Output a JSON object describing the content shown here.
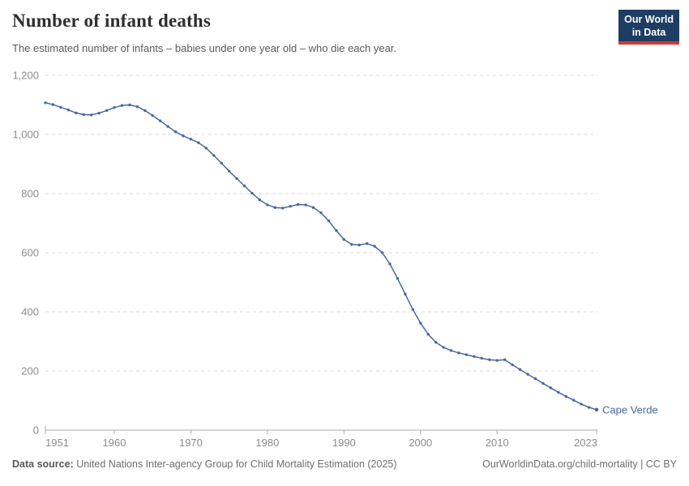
{
  "header": {
    "title": "Number of infant deaths",
    "subtitle": "The estimated number of infants – babies under one year old – who die each year.",
    "logo": {
      "line1": "Our World",
      "line2": "in Data",
      "bg_color": "#1d3d63",
      "accent_color": "#cf3a34"
    }
  },
  "chart_data": {
    "type": "line",
    "title": "Number of infant deaths",
    "entity_label": "Cape Verde",
    "line_color": "#4a68a0",
    "grid": "horizontal-dashed",
    "legend_position": "end-of-line",
    "xlabel": "",
    "ylabel": "",
    "ylim": [
      0,
      1200
    ],
    "yticks": [
      0,
      200,
      400,
      600,
      800,
      1000,
      1200
    ],
    "ytick_labels": [
      "0",
      "200",
      "400",
      "600",
      "800",
      "1,000",
      "1,200"
    ],
    "xticks": [
      1951,
      1960,
      1970,
      1980,
      1990,
      2000,
      2010,
      2023
    ],
    "x": [
      1951,
      1952,
      1953,
      1954,
      1955,
      1956,
      1957,
      1958,
      1959,
      1960,
      1961,
      1962,
      1963,
      1964,
      1965,
      1966,
      1967,
      1968,
      1969,
      1970,
      1971,
      1972,
      1973,
      1974,
      1975,
      1976,
      1977,
      1978,
      1979,
      1980,
      1981,
      1982,
      1983,
      1984,
      1985,
      1986,
      1987,
      1988,
      1989,
      1990,
      1991,
      1992,
      1993,
      1994,
      1995,
      1996,
      1997,
      1998,
      1999,
      2000,
      2001,
      2002,
      2003,
      2004,
      2005,
      2006,
      2007,
      2008,
      2009,
      2010,
      2011,
      2012,
      2013,
      2014,
      2015,
      2016,
      2017,
      2018,
      2019,
      2020,
      2021,
      2022,
      2023
    ],
    "values": [
      1107,
      1101,
      1092,
      1083,
      1073,
      1067,
      1066,
      1072,
      1081,
      1091,
      1098,
      1100,
      1094,
      1081,
      1064,
      1046,
      1027,
      1009,
      995,
      984,
      972,
      954,
      929,
      903,
      876,
      851,
      826,
      801,
      779,
      762,
      753,
      751,
      757,
      763,
      762,
      753,
      735,
      708,
      675,
      645,
      628,
      626,
      631,
      622,
      600,
      562,
      513,
      460,
      408,
      362,
      324,
      297,
      280,
      269,
      261,
      255,
      249,
      243,
      238,
      236,
      238,
      221,
      205,
      189,
      174,
      158,
      143,
      128,
      114,
      101,
      88,
      77,
      69
    ]
  },
  "footer": {
    "datasource_label": "Data source:",
    "datasource_text": " United Nations Inter-agency Group for Child Mortality Estimation (2025)",
    "link_text": "OurWorldinData.org/child-mortality | CC BY"
  },
  "colors": {
    "title": "#2e2e2e",
    "subtitle": "#5a5a5a",
    "tick_label": "#8c8c8c",
    "gridline": "#dedede",
    "axis": "#a8a8a8",
    "line": "#4a68a0"
  }
}
